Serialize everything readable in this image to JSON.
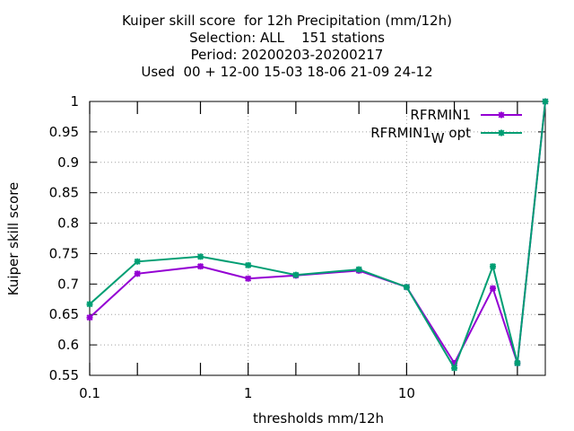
{
  "title_lines": [
    "Kuiper skill score  for 12h Precipitation (mm/12h)",
    "Selection: ALL    151 stations",
    "Period: 20200203-20200217",
    "Used  00 + 12-00 15-03 18-06 21-09 24-12"
  ],
  "chart_data": {
    "type": "line",
    "title": "Kuiper skill score  for 12h Precipitation (mm/12h)",
    "xlabel": "thresholds mm/12h",
    "ylabel": "Kuiper skill score",
    "xscale": "log",
    "xlim": [
      0.1,
      75
    ],
    "ylim": [
      0.55,
      1.0
    ],
    "x_ticks": [
      {
        "value": 0.1,
        "label": "0.1"
      },
      {
        "value": 1,
        "label": "1"
      },
      {
        "value": 10,
        "label": "10"
      }
    ],
    "x_minor_ticks": [
      0.2,
      0.5,
      2,
      5,
      20,
      50
    ],
    "y_ticks": [
      "0.55",
      "0.6",
      "0.65",
      "0.7",
      "0.75",
      "0.8",
      "0.85",
      "0.9",
      "0.95",
      "1"
    ],
    "grid": true,
    "legend_position": "top-right",
    "x": [
      0.1,
      0.2,
      0.5,
      1,
      2,
      5,
      10,
      20,
      35,
      50,
      75
    ],
    "series": [
      {
        "name": "RFRMIN1",
        "color": "#9400d3",
        "values": [
          0.645,
          0.717,
          0.729,
          0.709,
          0.714,
          0.722,
          0.695,
          0.57,
          0.693,
          0.57,
          1.0
        ]
      },
      {
        "name": "RFRMIN1_W opt",
        "legend_main": "RFRMIN1",
        "legend_sub": "W",
        "legend_suffix": " opt",
        "color": "#009e73",
        "values": [
          0.667,
          0.737,
          0.745,
          0.731,
          0.715,
          0.724,
          0.695,
          0.562,
          0.729,
          0.57,
          1.0
        ]
      }
    ]
  }
}
